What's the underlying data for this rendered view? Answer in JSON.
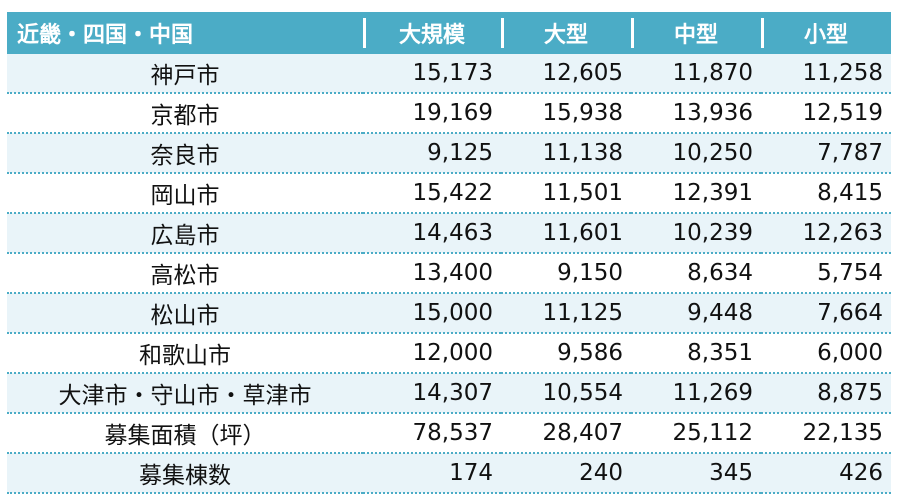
{
  "header": {
    "region": "近畿・四国・中国",
    "cols": [
      "大規模",
      "大型",
      "中型",
      "小型"
    ]
  },
  "rows": [
    {
      "name": "神戸市",
      "values": [
        "15,173",
        "12,605",
        "11,870",
        "11,258"
      ]
    },
    {
      "name": "京都市",
      "values": [
        "19,169",
        "15,938",
        "13,936",
        "12,519"
      ]
    },
    {
      "name": "奈良市",
      "values": [
        "9,125",
        "11,138",
        "10,250",
        "7,787"
      ]
    },
    {
      "name": "岡山市",
      "values": [
        "15,422",
        "11,501",
        "12,391",
        "8,415"
      ]
    },
    {
      "name": "広島市",
      "values": [
        "14,463",
        "11,601",
        "10,239",
        "12,263"
      ]
    },
    {
      "name": "高松市",
      "values": [
        "13,400",
        "9,150",
        "8,634",
        "5,754"
      ]
    },
    {
      "name": "松山市",
      "values": [
        "15,000",
        "11,125",
        "9,448",
        "7,664"
      ]
    },
    {
      "name": "和歌山市",
      "values": [
        "12,000",
        "9,586",
        "8,351",
        "6,000"
      ]
    },
    {
      "name": "大津市・守山市・草津市",
      "values": [
        "14,307",
        "10,554",
        "11,269",
        "8,875"
      ]
    },
    {
      "name": "募集面積（坪）",
      "values": [
        "78,537",
        "28,407",
        "25,112",
        "22,135"
      ]
    },
    {
      "name": "募集棟数",
      "values": [
        "174",
        "240",
        "345",
        "426"
      ]
    }
  ],
  "colors": {
    "header_bg": "#4bacc6",
    "row_shade": "#e9f4f9"
  }
}
